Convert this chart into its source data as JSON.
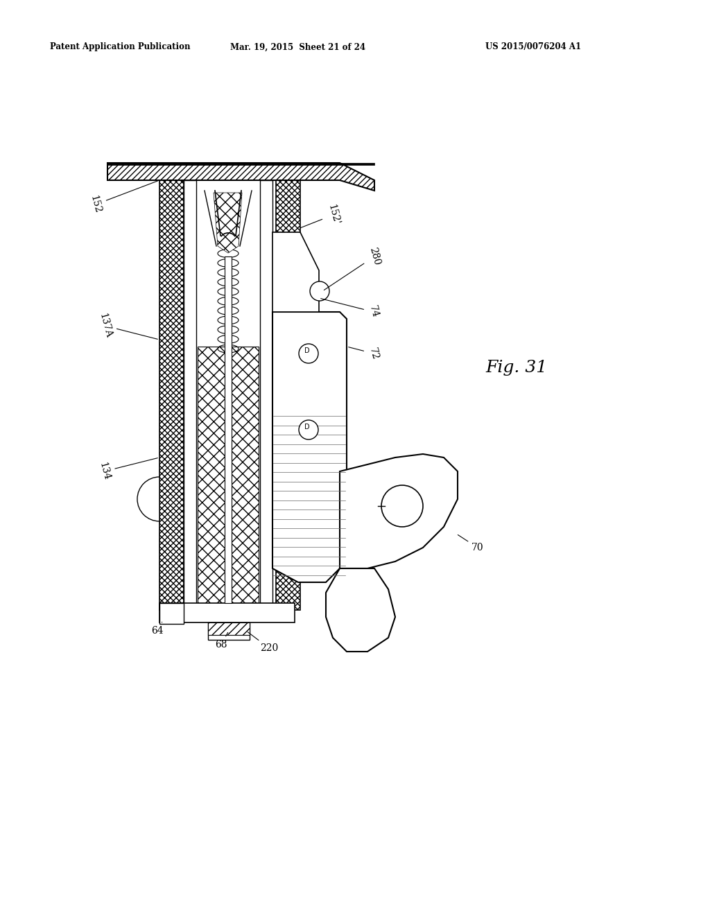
{
  "bg_color": "#ffffff",
  "header_left": "Patent Application Publication",
  "header_center": "Mar. 19, 2015  Sheet 21 of 24",
  "header_right": "US 2015/0076204 A1",
  "fig_label": "Fig. 31",
  "text_color": "#000000",
  "line_color": "#000000"
}
